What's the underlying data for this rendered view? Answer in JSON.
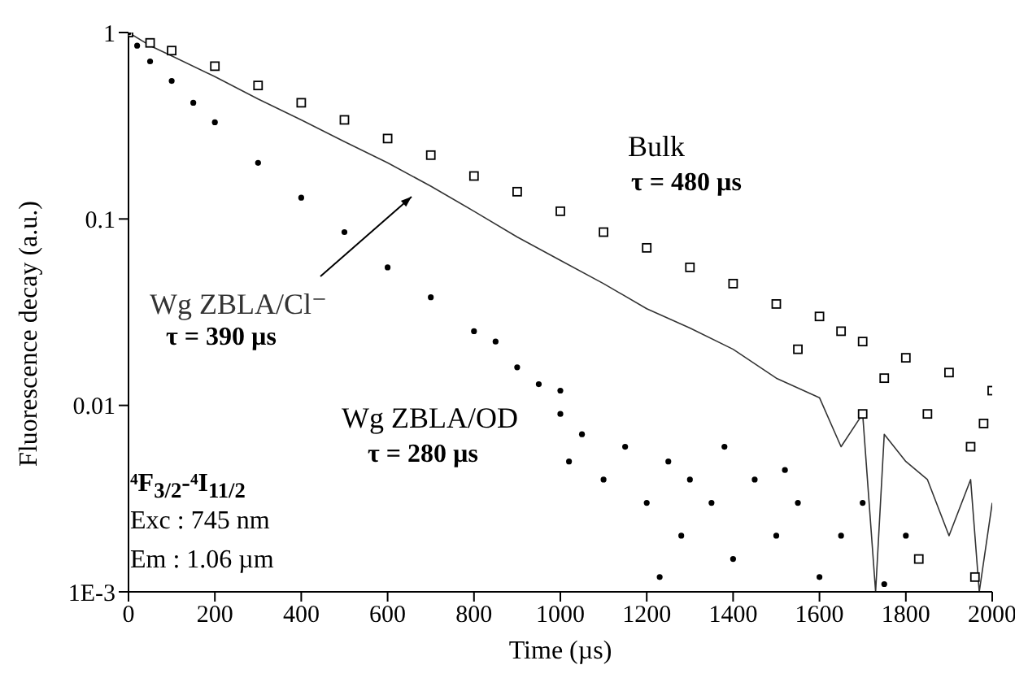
{
  "chart_data": {
    "type": "scatter",
    "xlabel": "Time (µs)",
    "ylabel": "Fluorescence decay (a.u.)",
    "log": "y",
    "xlim": [
      0,
      2000
    ],
    "xticks": [
      0,
      200,
      400,
      600,
      800,
      1000,
      1200,
      1400,
      1600,
      1800,
      2000
    ],
    "ylim": [
      0.001,
      1
    ],
    "yticks": [
      {
        "value": 0.001,
        "label": "1E-3"
      },
      0.01,
      0.1,
      1
    ],
    "series": [
      {
        "name": "Bulk",
        "marker": "square",
        "color": "#000000",
        "x": [
          0,
          50,
          100,
          200,
          300,
          400,
          500,
          600,
          700,
          800,
          900,
          1000,
          1100,
          1200,
          1300,
          1400,
          1500,
          1550,
          1600,
          1650,
          1700,
          1700,
          1750,
          1800,
          1830,
          1850,
          1900,
          1950,
          1960,
          1980,
          2000
        ],
        "values": [
          1,
          0.88,
          0.8,
          0.66,
          0.52,
          0.42,
          0.34,
          0.27,
          0.22,
          0.17,
          0.14,
          0.11,
          0.085,
          0.07,
          0.055,
          0.045,
          0.035,
          0.02,
          0.03,
          0.025,
          0.022,
          0.009,
          0.014,
          0.018,
          0.0015,
          0.009,
          0.015,
          0.006,
          0.0012,
          0.008,
          0.012
        ]
      },
      {
        "name": "Wg ZBLA/Cl⁻",
        "type": "line",
        "marker": "none",
        "color": "#333333",
        "x": [
          0,
          50,
          100,
          200,
          300,
          400,
          500,
          600,
          700,
          800,
          900,
          1000,
          1100,
          1200,
          1300,
          1400,
          1500,
          1600,
          1650,
          1700,
          1730,
          1750,
          1800,
          1850,
          1900,
          1950,
          1970,
          2000
        ],
        "values": [
          1,
          0.85,
          0.75,
          0.58,
          0.44,
          0.34,
          0.26,
          0.2,
          0.15,
          0.11,
          0.08,
          0.06,
          0.045,
          0.033,
          0.026,
          0.02,
          0.014,
          0.011,
          0.006,
          0.009,
          0.001,
          0.007,
          0.005,
          0.004,
          0.002,
          0.004,
          0.001,
          0.003
        ]
      },
      {
        "name": "Wg ZBLA/OD",
        "marker": "circle",
        "color": "#000000",
        "x": [
          0,
          20,
          50,
          100,
          150,
          200,
          300,
          400,
          500,
          600,
          700,
          800,
          850,
          900,
          950,
          1000,
          1000,
          1020,
          1050,
          1100,
          1150,
          1200,
          1230,
          1250,
          1280,
          1300,
          1350,
          1380,
          1400,
          1450,
          1500,
          1520,
          1550,
          1600,
          1650,
          1700,
          1750,
          1800
        ],
        "values": [
          1,
          0.85,
          0.7,
          0.55,
          0.42,
          0.33,
          0.2,
          0.13,
          0.085,
          0.055,
          0.038,
          0.025,
          0.022,
          0.016,
          0.013,
          0.009,
          0.012,
          0.005,
          0.007,
          0.004,
          0.006,
          0.003,
          0.0012,
          0.005,
          0.002,
          0.004,
          0.003,
          0.006,
          0.0015,
          0.004,
          0.002,
          0.0045,
          0.003,
          0.0012,
          0.002,
          0.003,
          0.0011,
          0.002
        ]
      }
    ],
    "annotations": [
      "τ = 480 µs",
      "τ = 390 µs",
      "τ = 280 µs",
      "⁴F$_{3/2}$-⁴I$_{11/2}$",
      "Exc : 745 nm",
      "Em : 1.06 µm"
    ]
  }
}
